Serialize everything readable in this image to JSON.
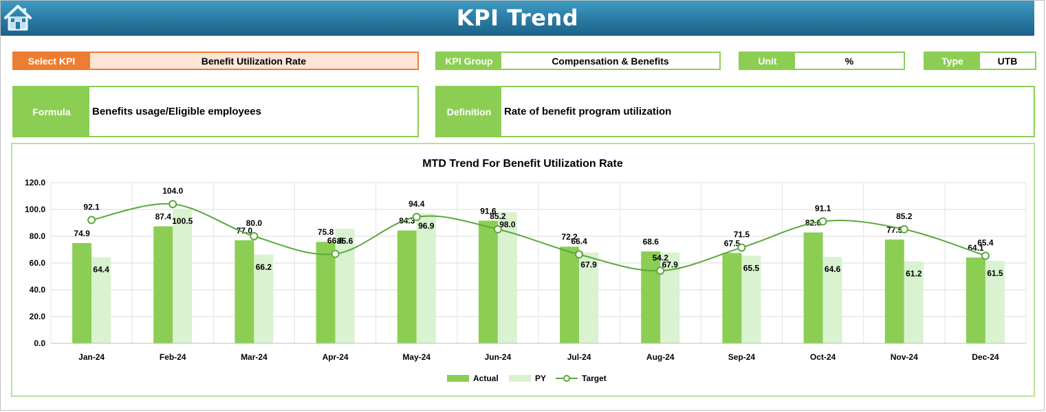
{
  "header": {
    "title": "KPI Trend",
    "home_icon": "home-icon"
  },
  "fields": {
    "select_kpi": {
      "label": "Select KPI",
      "value": "Benefit Utilization Rate"
    },
    "kpi_group": {
      "label": "KPI Group",
      "value": "Compensation & Benefits"
    },
    "unit": {
      "label": "Unit",
      "value": "%"
    },
    "type": {
      "label": "Type",
      "value": "UTB"
    },
    "formula": {
      "label": "Formula",
      "value": "Benefits usage/Eligible employees"
    },
    "definition": {
      "label": "Definition",
      "value": "Rate of benefit program utilization"
    }
  },
  "colors": {
    "accent_orange": "#ed7d31",
    "label_green": "#8cce54",
    "actual_bar": "#8cce54",
    "py_bar": "#d9f2d0",
    "target_line": "#58a83a",
    "banner_blue": "#2a7aa3"
  },
  "chart_data": {
    "type": "bar",
    "title": "MTD Trend For Benefit Utilization Rate",
    "categories": [
      "Jan-24",
      "Feb-24",
      "Mar-24",
      "Apr-24",
      "May-24",
      "Jun-24",
      "Jul-24",
      "Aug-24",
      "Sep-24",
      "Oct-24",
      "Nov-24",
      "Dec-24"
    ],
    "series": [
      {
        "name": "Actual",
        "type": "bar",
        "values": [
          74.9,
          87.4,
          77.0,
          75.8,
          84.3,
          91.6,
          72.2,
          68.6,
          67.5,
          82.8,
          77.5,
          64.1
        ]
      },
      {
        "name": "PY",
        "type": "bar",
        "values": [
          64.4,
          100.5,
          66.2,
          85.6,
          96.9,
          98.0,
          67.9,
          67.9,
          65.5,
          64.6,
          61.2,
          61.5
        ]
      },
      {
        "name": "Target",
        "type": "line",
        "values": [
          92.1,
          104.0,
          80.0,
          66.8,
          94.4,
          85.2,
          66.4,
          54.2,
          71.5,
          91.1,
          85.2,
          65.4
        ]
      }
    ],
    "yticks": [
      "0.0",
      "20.0",
      "40.0",
      "60.0",
      "80.0",
      "100.0",
      "120.0"
    ],
    "ylim": [
      0,
      120
    ],
    "grid": true,
    "legend": "bottom"
  }
}
